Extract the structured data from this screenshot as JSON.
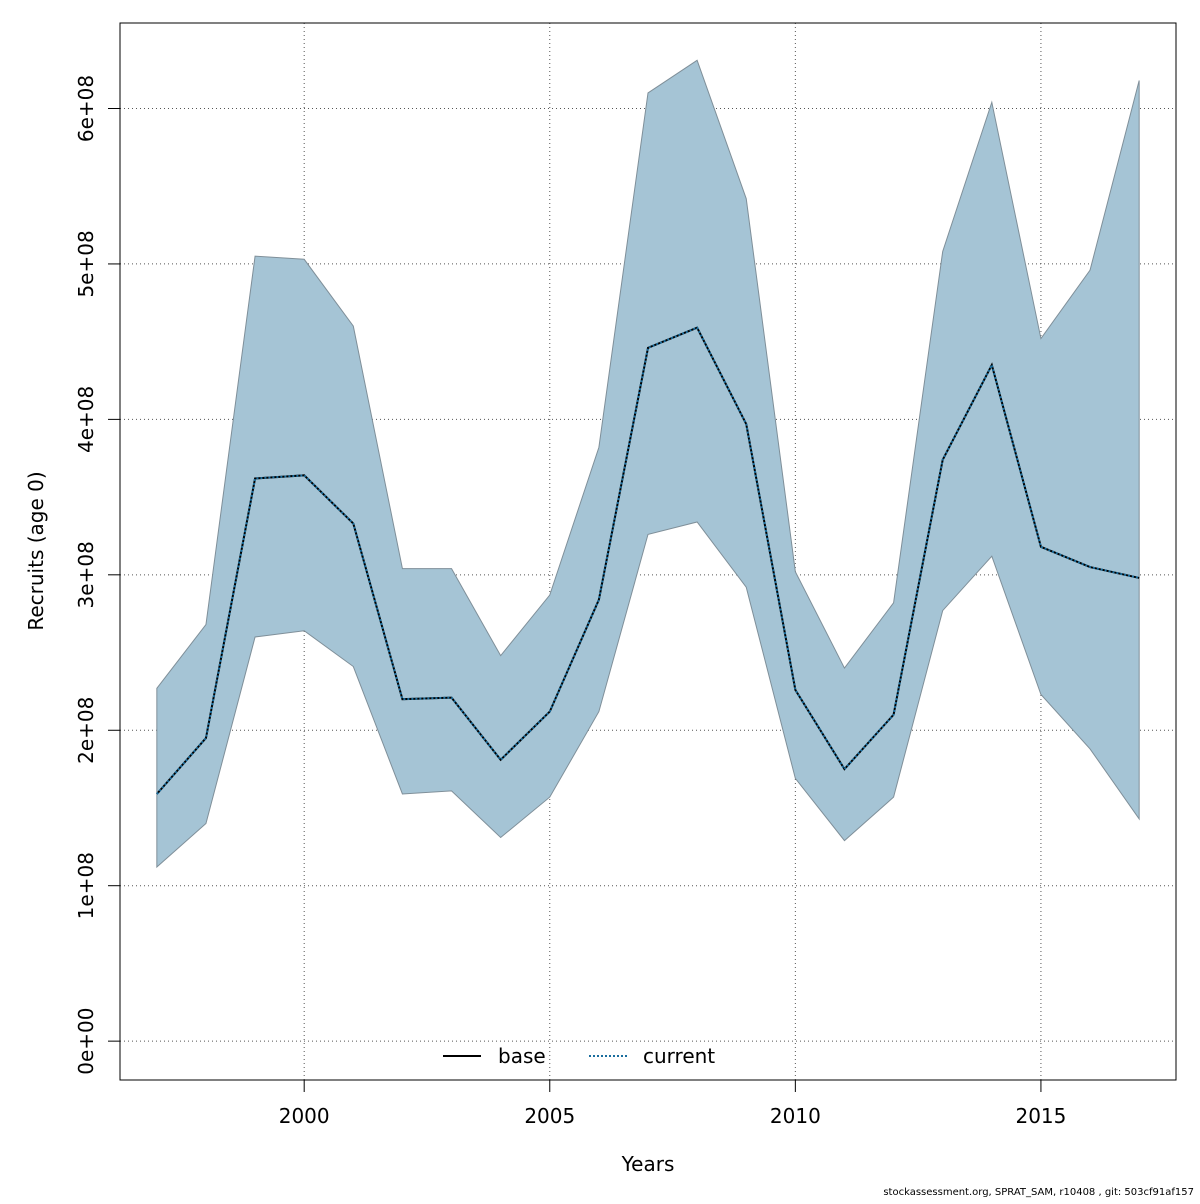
{
  "chart_data": {
    "type": "line",
    "xlabel": "Years",
    "ylabel": "Recruits (age 0)",
    "xlim": [
      1996.25,
      2017.75
    ],
    "ylim": [
      -25000000,
      655000000
    ],
    "x_ticks": [
      2000,
      2005,
      2010,
      2015
    ],
    "x_tick_labels": [
      "2000",
      "2005",
      "2010",
      "2015"
    ],
    "y_ticks": [
      0,
      100000000,
      200000000,
      300000000,
      400000000,
      500000000,
      600000000
    ],
    "y_tick_labels": [
      "0e+00",
      "1e+08",
      "2e+08",
      "3e+08",
      "4e+08",
      "5e+08",
      "6e+08"
    ],
    "grid": true,
    "legend_position": "bottom",
    "x": [
      1997,
      1998,
      1999,
      2000,
      2001,
      2002,
      2003,
      2004,
      2005,
      2006,
      2007,
      2008,
      2009,
      2010,
      2011,
      2012,
      2013,
      2014,
      2015,
      2016,
      2017
    ],
    "band": {
      "color": "#a5c4d5",
      "edge_color": "#7f8f99",
      "upper": [
        227000000,
        268000000,
        505000000,
        503000000,
        460000000,
        304000000,
        304000000,
        248000000,
        287000000,
        382000000,
        610000000,
        631000000,
        542000000,
        302000000,
        240000000,
        282000000,
        508000000,
        604000000,
        452000000,
        496000000,
        618000000
      ],
      "lower": [
        112000000,
        140000000,
        260000000,
        264000000,
        241000000,
        159000000,
        161000000,
        131000000,
        157000000,
        212000000,
        326000000,
        334000000,
        292000000,
        169000000,
        129000000,
        157000000,
        277000000,
        312000000,
        223000000,
        188000000,
        143000000
      ]
    },
    "series": [
      {
        "name": "base",
        "color": "#000000",
        "dash": "solid",
        "values": [
          159000000,
          195000000,
          362000000,
          364000000,
          333000000,
          220000000,
          221000000,
          181000000,
          212000000,
          284000000,
          446000000,
          459000000,
          397000000,
          226000000,
          175000000,
          210000000,
          374000000,
          435000000,
          318000000,
          305000000,
          298000000
        ]
      },
      {
        "name": "current",
        "color": "#1a6e9e",
        "dash": "dotted",
        "values": [
          159000000,
          195000000,
          362000000,
          364000000,
          333000000,
          220000000,
          221000000,
          181000000,
          212000000,
          284000000,
          446000000,
          459000000,
          397000000,
          226000000,
          175000000,
          210000000,
          374000000,
          435000000,
          318000000,
          305000000,
          298000000
        ]
      }
    ]
  },
  "footer": "stockassessment.org, SPRAT_SAM, r10408 , git: 503cf91af157"
}
